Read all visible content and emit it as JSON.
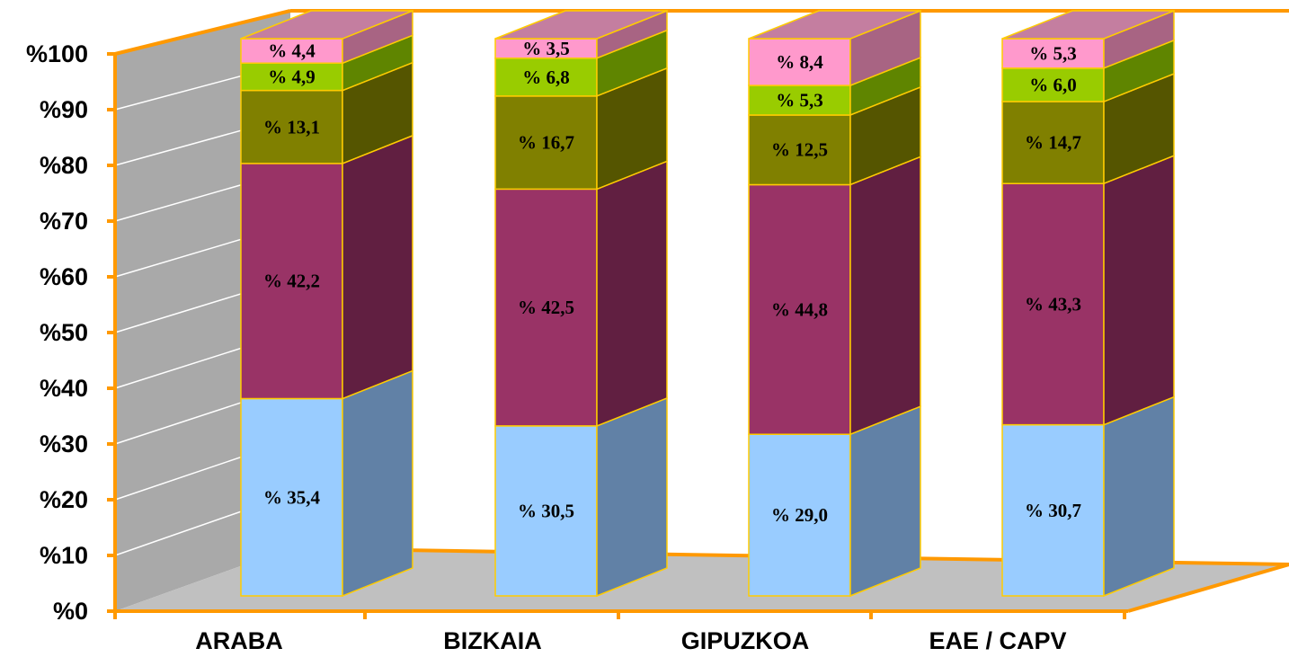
{
  "chart_data": {
    "type": "bar",
    "stacked": true,
    "three_d": true,
    "categories": [
      "ARABA",
      "BIZKAIA",
      "GIPUZKOA",
      "EAE / CAPV"
    ],
    "series": [
      {
        "values": [
          35.4,
          30.5,
          29.0,
          30.7
        ],
        "labels": [
          "% 35,4",
          "% 30,5",
          "% 29,0",
          "% 30,7"
        ]
      },
      {
        "values": [
          42.2,
          42.5,
          44.8,
          43.3
        ],
        "labels": [
          "% 42,2",
          "% 42,5",
          "% 44,8",
          "% 43,3"
        ]
      },
      {
        "values": [
          13.1,
          16.7,
          12.5,
          14.7
        ],
        "labels": [
          "% 13,1",
          "% 16,7",
          "% 12,5",
          "% 14,7"
        ]
      },
      {
        "values": [
          4.9,
          6.8,
          5.3,
          6.0
        ],
        "labels": [
          "% 4,9",
          "% 6,8",
          "% 5,3",
          "% 6,0"
        ]
      },
      {
        "values": [
          4.4,
          3.5,
          8.4,
          5.3
        ],
        "labels": [
          "% 4,4",
          "% 3,5",
          "% 8,4",
          "% 5,3"
        ]
      }
    ],
    "colors": {
      "front": [
        "#99ccff",
        "#993366",
        "#808000",
        "#99cc00",
        "#ff99cc"
      ],
      "side": [
        "#6181a6",
        "#611f41",
        "#555500",
        "#5f8500",
        "#a86483"
      ],
      "top": [
        "#b8dcff",
        "#b35c85",
        "#9c9c2a",
        "#b8de44",
        "#c47ea0"
      ],
      "edge": "#ffcc00",
      "axis": "#ff9900",
      "wall": "#a9a9a9",
      "gridline": "#ffffff"
    },
    "yticks": [
      "%0",
      "%10",
      "%20",
      "%30",
      "%40",
      "%50",
      "%60",
      "%70",
      "%80",
      "%90",
      "%100"
    ],
    "ylim": [
      0,
      100
    ],
    "grid": true,
    "legend": "none",
    "title": "",
    "xlabel": "",
    "ylabel": ""
  }
}
